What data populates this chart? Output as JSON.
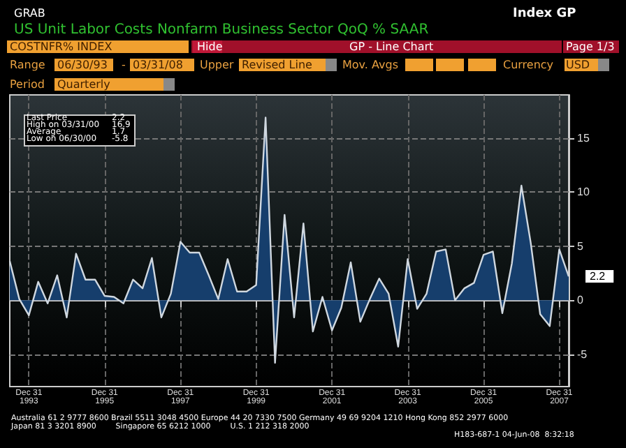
{
  "chart_data": {
    "type": "area",
    "title": "US Unit Labor Costs Nonfarm Business Sector QoQ % SAAR",
    "annotations": [
      "GRAB",
      "Index GP",
      "COSTNFR% INDEX",
      "Hide",
      "GP - Line Chart",
      "Page 1/3",
      "Range",
      "06/30/93",
      "-",
      "03/31/08",
      "Upper",
      "Revised Line",
      "Mov. Avgs",
      "Currency",
      "USD",
      "Period",
      "Quarterly",
      "Last Price",
      "2.2",
      "High on 03/31/00",
      "16.9",
      "Average",
      "1.7",
      "Low on 06/30/00",
      "-5.8",
      "Australia 61 2 9777 8600 Brazil 5511 3048 4500 Europe 44 20 7330 7500 Germany 49 69 9204 1210 Hong Kong 852 2977 6000",
      "Japan 81 3 3201 8900        Singapore 65 6212 1000        U.S. 1 212 318 2000",
      "H183-687-1 04-Jun-08  8:32:18"
    ],
    "x": [
      "1993-06-30",
      "1993-09-30",
      "1993-12-31",
      "1994-03-31",
      "1994-06-30",
      "1994-09-30",
      "1994-12-31",
      "1995-03-31",
      "1995-06-30",
      "1995-09-30",
      "1995-12-31",
      "1996-03-31",
      "1996-06-30",
      "1996-09-30",
      "1996-12-31",
      "1997-03-31",
      "1997-06-30",
      "1997-09-30",
      "1997-12-31",
      "1998-03-31",
      "1998-06-30",
      "1998-09-30",
      "1998-12-31",
      "1999-03-31",
      "1999-06-30",
      "1999-09-30",
      "1999-12-31",
      "2000-03-31",
      "2000-06-30",
      "2000-09-30",
      "2000-12-31",
      "2001-03-31",
      "2001-06-30",
      "2001-09-30",
      "2001-12-31",
      "2002-03-31",
      "2002-06-30",
      "2002-09-30",
      "2002-12-31",
      "2003-03-31",
      "2003-06-30",
      "2003-09-30",
      "2003-12-31",
      "2004-03-31",
      "2004-06-30",
      "2004-09-30",
      "2004-12-31",
      "2005-03-31",
      "2005-06-30",
      "2005-09-30",
      "2005-12-31",
      "2006-03-31",
      "2006-06-30",
      "2006-09-30",
      "2006-12-31",
      "2007-03-31",
      "2007-06-30",
      "2007-09-30",
      "2007-12-31",
      "2008-03-31"
    ],
    "series": [
      {
        "color": "#163e6c",
        "values": [
          3.6,
          0.1,
          -1.4,
          1.7,
          -0.3,
          2.3,
          -1.6,
          4.3,
          1.9,
          1.9,
          0.4,
          0.3,
          -0.3,
          1.9,
          1.1,
          3.9,
          -1.6,
          0.6,
          5.4,
          4.4,
          4.4,
          2.3,
          0.1,
          3.8,
          0.8,
          0.8,
          1.4,
          16.9,
          -5.8,
          7.9,
          -1.6,
          7.1,
          -2.9,
          0.3,
          -2.8,
          -0.7,
          3.5,
          -2.0,
          0.1,
          2.0,
          0.6,
          -4.3,
          3.8,
          -0.8,
          0.6,
          4.5,
          4.7,
          0.0,
          1.1,
          1.6,
          4.2,
          4.5,
          -1.2,
          3.4,
          10.6,
          5.3,
          -1.3,
          -2.4,
          4.7,
          2.2
        ],
        "value_labels": [
          null,
          null,
          null,
          null,
          null,
          null,
          null,
          null,
          null,
          null,
          null,
          null,
          null,
          null,
          null,
          null,
          null,
          null,
          null,
          null,
          null,
          null,
          null,
          null,
          null,
          null,
          null,
          null,
          null,
          null,
          null,
          null,
          null,
          null,
          null,
          null,
          null,
          null,
          null,
          null,
          null,
          null,
          null,
          null,
          null,
          null,
          null,
          null,
          null,
          null,
          null,
          null,
          null,
          null,
          null,
          null,
          null,
          null,
          null,
          "2.2"
        ]
      }
    ],
    "xlim": [
      "1993-06-30",
      "2008-03-31"
    ],
    "xticks": [
      {
        "value": "1993-12-31",
        "label": "Dec 31\n1993"
      },
      {
        "value": "1995-12-31",
        "label": "Dec 31\n1995"
      },
      {
        "value": "1997-12-31",
        "label": "Dec 31\n1997"
      },
      {
        "value": "1999-12-31",
        "label": "Dec 31\n1999"
      },
      {
        "value": "2001-12-31",
        "label": "Dec 31\n2001"
      },
      {
        "value": "2003-12-31",
        "label": "Dec 31\n2003"
      },
      {
        "value": "2005-12-31",
        "label": "Dec 31\n2005"
      },
      {
        "value": "2007-12-31",
        "label": "Dec 31\n2007"
      }
    ],
    "ylim": [
      -8,
      19
    ],
    "yticks": [
      -5,
      0,
      5,
      10,
      15
    ],
    "grid": true,
    "marker": "none",
    "line_style": "solid"
  }
}
